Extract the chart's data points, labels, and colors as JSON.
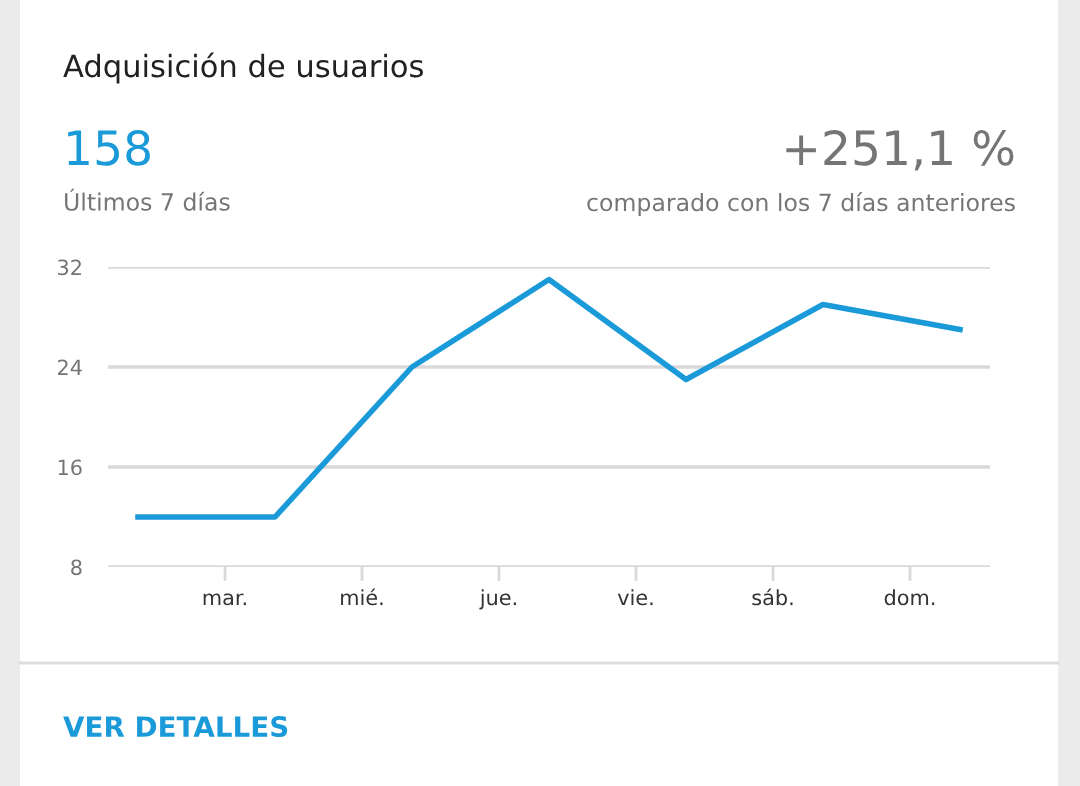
{
  "chart_data": {
    "type": "line",
    "title": "Adquisición de usuarios",
    "annotations": [
      "158",
      "Últimos 7 días",
      "+251,1 %",
      "comparado con los 7 días anteriores",
      "VER DETALLES"
    ],
    "categories": [
      null,
      "mar.",
      "mié.",
      "jue.",
      "vie.",
      "sáb.",
      "dom."
    ],
    "series": [
      {
        "color": "#1a9ad9",
        "values": [
          12,
          12,
          24,
          31,
          23,
          29,
          27
        ]
      }
    ],
    "ylim": [
      8,
      32
    ],
    "yticks": [
      8,
      16,
      24,
      32
    ],
    "grid": "y",
    "legend": false,
    "marker": "none",
    "line_style": "solid"
  }
}
